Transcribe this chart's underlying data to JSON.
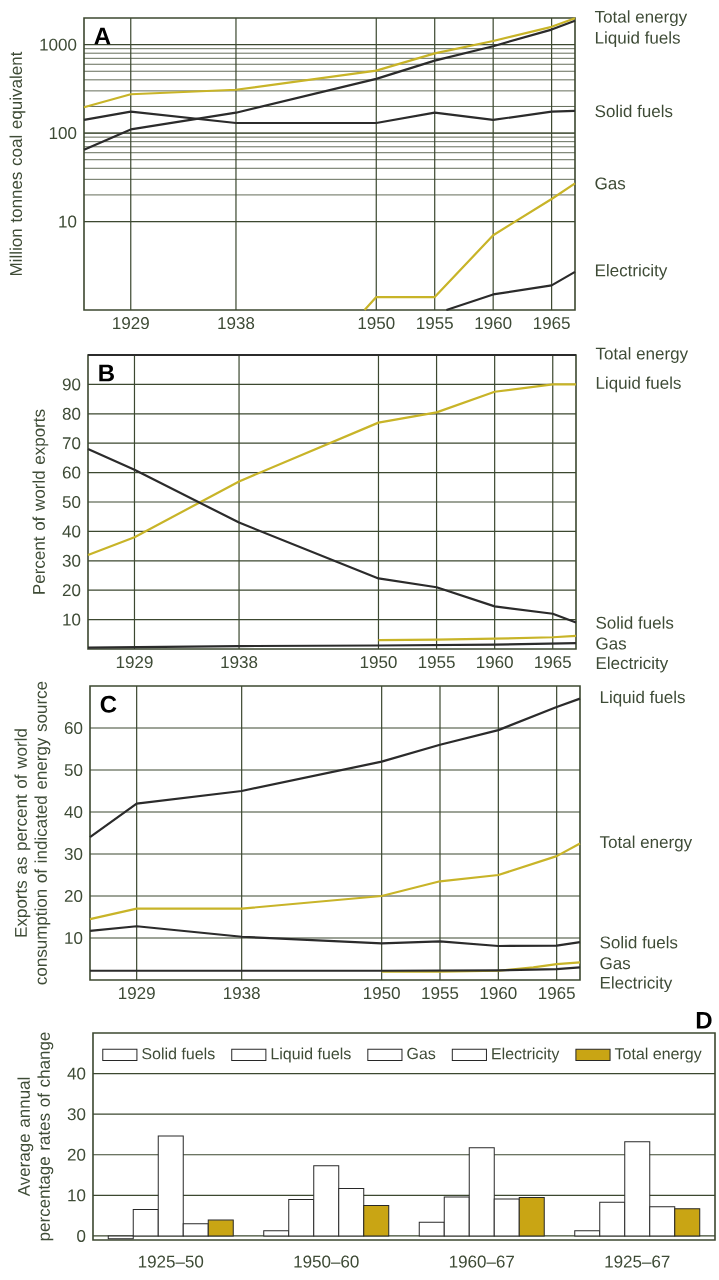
{
  "chart_data": [
    {
      "type": "line",
      "title": "A",
      "ylabel": "Million tonnes coal equivalent",
      "log": "y",
      "grid": true,
      "xlim": [
        1925,
        1967
      ],
      "xticks": [
        1929,
        1938,
        1950,
        1955,
        1960,
        1965
      ],
      "ylim": [
        1,
        2000
      ],
      "yticks": [
        10,
        100,
        1000
      ],
      "series": [
        {
          "name": "Total energy",
          "color": "#c8b428",
          "x": [
            1925,
            1929,
            1938,
            1950,
            1955,
            1960,
            1965,
            1967
          ],
          "values": [
            196,
            275,
            309,
            509,
            796,
            1100,
            1590,
            1990
          ]
        },
        {
          "name": "Liquid fuels",
          "color": "#2b2b2b",
          "x": [
            1925,
            1929,
            1938,
            1950,
            1955,
            1960,
            1965,
            1967
          ],
          "values": [
            65,
            110,
            170,
            410,
            660,
            960,
            1480,
            1860
          ]
        },
        {
          "name": "Solid fuels",
          "color": "#2b2b2b",
          "x": [
            1925,
            1929,
            1938,
            1950,
            1955,
            1960,
            1965,
            1967
          ],
          "values": [
            141,
            175,
            130,
            130,
            170,
            141,
            175,
            178
          ]
        },
        {
          "name": "Gas",
          "color": "#c8b428",
          "x": [
            1949,
            1950,
            1955,
            1960,
            1965,
            1967
          ],
          "values": [
            1,
            1.4,
            1.4,
            7,
            18,
            27
          ]
        },
        {
          "name": "Electricity",
          "color": "#2b2b2b",
          "x": [
            1956,
            1960,
            1965,
            1967
          ],
          "values": [
            1,
            1.5,
            1.9,
            2.7
          ]
        }
      ]
    },
    {
      "type": "line",
      "title": "B",
      "ylabel": "Percent of world exports",
      "grid": true,
      "xlim": [
        1925,
        1967
      ],
      "xticks": [
        1929,
        1938,
        1950,
        1955,
        1960,
        1965
      ],
      "ylim": [
        0,
        100
      ],
      "yticks": [
        10,
        20,
        30,
        40,
        50,
        60,
        70,
        80,
        90
      ],
      "series": [
        {
          "name": "Total energy",
          "color": "#2b2b2b",
          "x": [
            1925,
            1967
          ],
          "values": [
            100,
            100
          ]
        },
        {
          "name": "Liquid fuels",
          "color": "#c8b428",
          "x": [
            1925,
            1929,
            1938,
            1950,
            1955,
            1960,
            1965,
            1967
          ],
          "values": [
            32,
            38,
            57,
            77,
            80.5,
            87.5,
            90,
            90
          ]
        },
        {
          "name": "Solid fuels",
          "color": "#2b2b2b",
          "x": [
            1925,
            1929,
            1938,
            1950,
            1955,
            1960,
            1965,
            1967
          ],
          "values": [
            68,
            61,
            43,
            24,
            21,
            14.5,
            12,
            9
          ]
        },
        {
          "name": "Gas",
          "color": "#c8b428",
          "x": [
            1950,
            1955,
            1960,
            1965,
            1967
          ],
          "values": [
            3,
            3.2,
            3.5,
            4,
            4.5
          ]
        },
        {
          "name": "Electricity",
          "color": "#2b2b2b",
          "x": [
            1925,
            1938,
            1950,
            1960,
            1967
          ],
          "values": [
            0.5,
            1,
            1.2,
            1.5,
            2
          ]
        }
      ]
    },
    {
      "type": "line",
      "title": "C",
      "ylabel": "Exports as percent of world consumption of indicated energy source",
      "grid": true,
      "xlim": [
        1925,
        1967
      ],
      "xticks": [
        1929,
        1938,
        1950,
        1955,
        1960,
        1965
      ],
      "ylim": [
        0,
        70
      ],
      "yticks": [
        10,
        20,
        30,
        40,
        50,
        60
      ],
      "series": [
        {
          "name": "Liquid fuels",
          "color": "#2b2b2b",
          "x": [
            1925,
            1929,
            1938,
            1950,
            1955,
            1960,
            1965,
            1967
          ],
          "values": [
            34,
            42,
            45,
            52,
            56,
            59.5,
            65,
            67
          ]
        },
        {
          "name": "Total energy",
          "color": "#c8b428",
          "x": [
            1925,
            1929,
            1938,
            1950,
            1955,
            1960,
            1965,
            1967
          ],
          "values": [
            14.5,
            17,
            17,
            20,
            23.5,
            25,
            29.5,
            32.5
          ]
        },
        {
          "name": "Solid fuels",
          "color": "#2b2b2b",
          "x": [
            1925,
            1929,
            1938,
            1950,
            1955,
            1960,
            1965,
            1967
          ],
          "values": [
            11.7,
            12.8,
            10.3,
            8.7,
            9.2,
            8.1,
            8.2,
            9
          ]
        },
        {
          "name": "Gas",
          "color": "#c8b428",
          "x": [
            1950,
            1955,
            1960,
            1963,
            1965,
            1967
          ],
          "values": [
            2,
            2,
            2.2,
            3,
            3.8,
            4.2
          ]
        },
        {
          "name": "Electricity",
          "color": "#2b2b2b",
          "x": [
            1925,
            1950,
            1960,
            1965,
            1967
          ],
          "values": [
            2.2,
            2.2,
            2.3,
            2.6,
            3
          ]
        }
      ]
    },
    {
      "type": "bar",
      "title": "D",
      "ylabel": "Average annual percentage rates of change",
      "grid": "y",
      "legend": "top",
      "categories": [
        "1925–50",
        "1950–60",
        "1960–67",
        "1925–67"
      ],
      "ylim": [
        -1,
        50
      ],
      "yticks": [
        0,
        10,
        20,
        30,
        40
      ],
      "series": [
        {
          "name": "Solid fuels",
          "color": "#ffffff",
          "values": [
            -0.7,
            1.3,
            3.4,
            1.3
          ]
        },
        {
          "name": "Liquid fuels",
          "color": "#ffffff",
          "values": [
            6.5,
            9,
            9.6,
            8.3
          ]
        },
        {
          "name": "Gas",
          "color": "#ffffff",
          "values": [
            24.6,
            17.3,
            21.7,
            23.2
          ]
        },
        {
          "name": "Electricity",
          "color": "#ffffff",
          "values": [
            3,
            11.7,
            9.1,
            7.2
          ]
        },
        {
          "name": "Total energy",
          "color": "#c9a514",
          "values": [
            3.9,
            7.5,
            9.5,
            6.7
          ]
        }
      ]
    }
  ]
}
